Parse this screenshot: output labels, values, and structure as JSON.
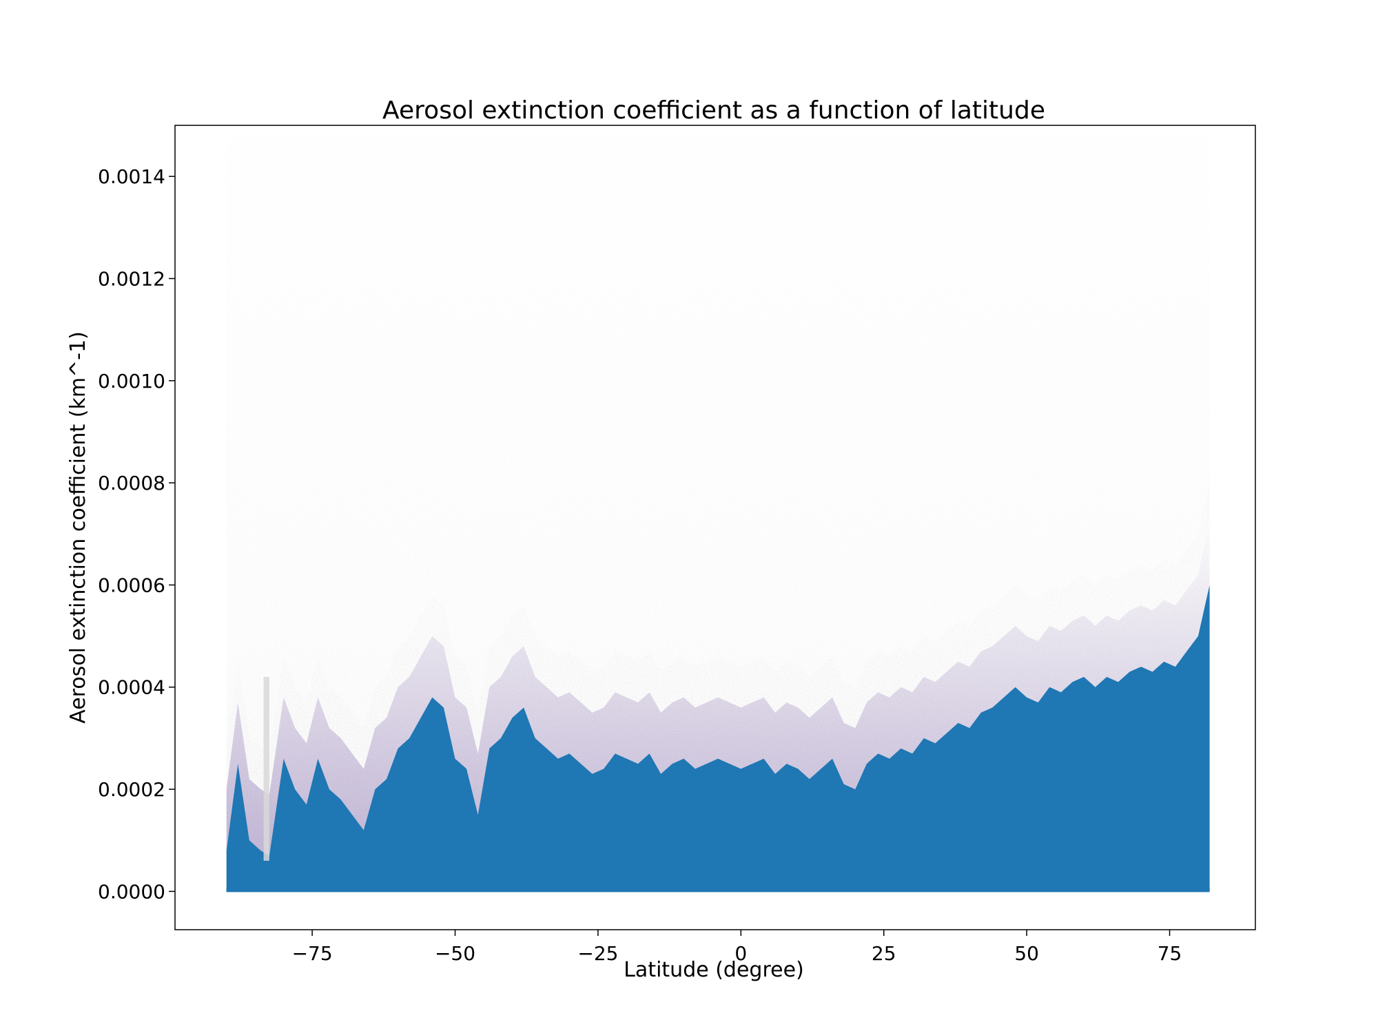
{
  "chart_data": {
    "type": "scatter",
    "title": "Aerosol extinction coefficient as a function of latitude",
    "xlabel": "Latitude (degree)",
    "ylabel": "Aerosol extinction coefficient (km^-1)",
    "xlim": [
      -99,
      90
    ],
    "ylim": [
      -7.5e-05,
      0.0015
    ],
    "x_ticks": [
      -75,
      -50,
      -25,
      0,
      25,
      50,
      75
    ],
    "x_tick_labels": [
      "−75",
      "−50",
      "−25",
      "0",
      "25",
      "50",
      "75"
    ],
    "y_ticks": [
      0.0,
      0.0002,
      0.0004,
      0.0006,
      0.0008,
      0.001,
      0.0012,
      0.0014
    ],
    "y_tick_labels": [
      "0.0000",
      "0.0002",
      "0.0004",
      "0.0006",
      "0.0008",
      "0.0010",
      "0.0012",
      "0.0014"
    ],
    "grid": false,
    "legend": "none",
    "x_data_range": [
      -90,
      82
    ],
    "y_data_range": [
      0.0,
      0.00148
    ],
    "series": [
      {
        "color": "#1f77b4",
        "marker_alpha": "low",
        "dense_upper_edge": {
          "lat": [
            -90,
            -88,
            -86,
            -84,
            -82.5,
            -80,
            -78,
            -76,
            -74,
            -72,
            -70,
            -68,
            -66,
            -64,
            -62,
            -60,
            -58,
            -56,
            -54,
            -52,
            -50,
            -48,
            -46,
            -44,
            -42,
            -40,
            -38,
            -36,
            -34,
            -32,
            -30,
            -28,
            -26,
            -24,
            -22,
            -20,
            -18,
            -16,
            -14,
            -12,
            -10,
            -8,
            -6,
            -4,
            -2,
            0,
            2,
            4,
            6,
            8,
            10,
            12,
            14,
            16,
            18,
            20,
            22,
            24,
            26,
            28,
            30,
            32,
            34,
            36,
            38,
            40,
            42,
            44,
            46,
            48,
            50,
            52,
            54,
            56,
            58,
            60,
            62,
            64,
            66,
            68,
            70,
            72,
            74,
            76,
            78,
            80,
            82
          ],
          "value": [
            8e-05,
            0.00025,
            0.0001,
            8e-05,
            7e-05,
            0.00026,
            0.0002,
            0.00017,
            0.00026,
            0.0002,
            0.00018,
            0.00015,
            0.00012,
            0.0002,
            0.00022,
            0.00028,
            0.0003,
            0.00034,
            0.00038,
            0.00036,
            0.00026,
            0.00024,
            0.00015,
            0.00028,
            0.0003,
            0.00034,
            0.00036,
            0.0003,
            0.00028,
            0.00026,
            0.00027,
            0.00025,
            0.00023,
            0.00024,
            0.00027,
            0.00026,
            0.00025,
            0.00027,
            0.00023,
            0.00025,
            0.00026,
            0.00024,
            0.00025,
            0.00026,
            0.00025,
            0.00024,
            0.00025,
            0.00026,
            0.00023,
            0.00025,
            0.00024,
            0.00022,
            0.00024,
            0.00026,
            0.00021,
            0.0002,
            0.00025,
            0.00027,
            0.00026,
            0.00028,
            0.00027,
            0.0003,
            0.00029,
            0.00031,
            0.00033,
            0.00032,
            0.00035,
            0.00036,
            0.00038,
            0.0004,
            0.00038,
            0.00037,
            0.0004,
            0.00039,
            0.00041,
            0.00042,
            0.0004,
            0.00042,
            0.00041,
            0.00043,
            0.00044,
            0.00043,
            0.00045,
            0.00044,
            0.00047,
            0.0005,
            0.0006
          ]
        }
      }
    ]
  }
}
